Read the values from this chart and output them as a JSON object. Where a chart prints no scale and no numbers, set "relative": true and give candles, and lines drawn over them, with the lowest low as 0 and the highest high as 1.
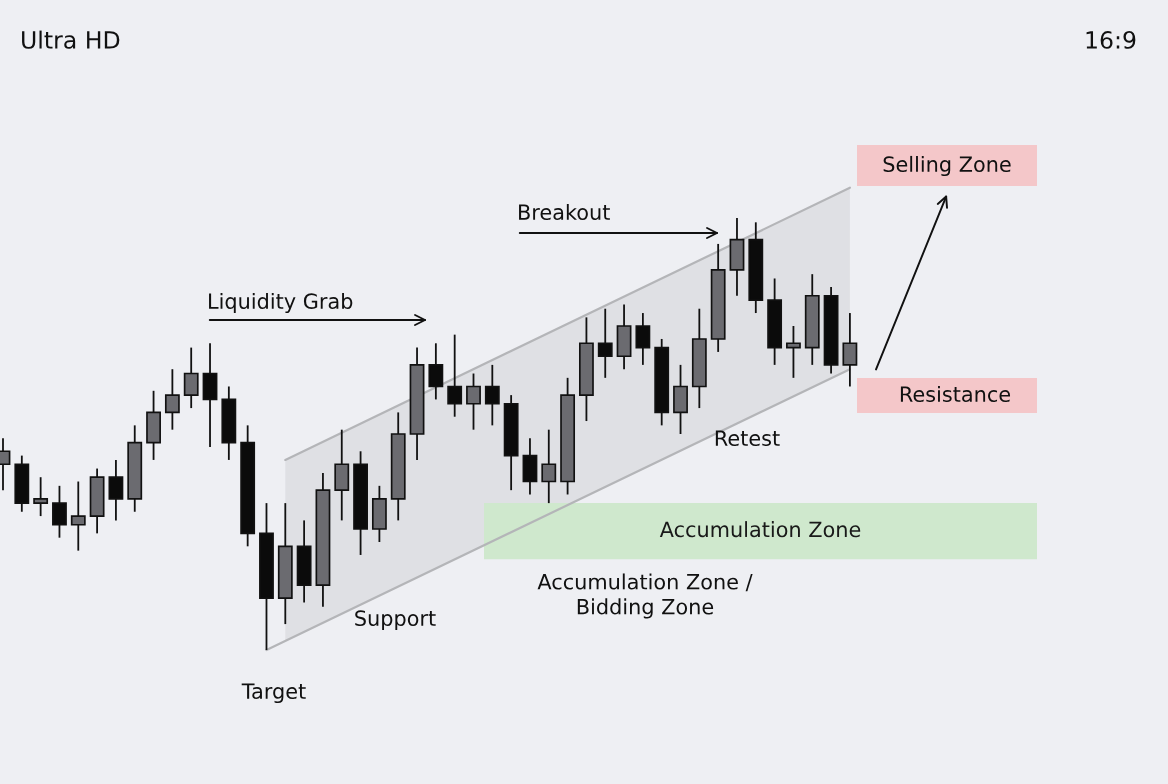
{
  "chart_data": {
    "type": "candlestick",
    "relative": true,
    "categories": [
      null,
      null,
      null,
      null,
      null,
      null,
      null,
      null,
      null,
      null,
      null,
      null,
      null,
      null,
      null,
      null,
      null,
      null,
      null,
      null,
      null,
      null,
      null,
      null,
      null,
      null,
      null,
      null,
      null,
      null,
      null,
      null,
      null,
      null,
      null,
      null,
      null,
      null,
      null,
      null,
      null,
      null,
      null,
      null,
      null,
      null
    ],
    "ohlc": [
      [
        0.43,
        0.49,
        0.37,
        0.46
      ],
      [
        0.43,
        0.45,
        0.32,
        0.34
      ],
      [
        0.34,
        0.4,
        0.31,
        0.35
      ],
      [
        0.34,
        0.38,
        0.26,
        0.29
      ],
      [
        0.29,
        0.39,
        0.23,
        0.31
      ],
      [
        0.31,
        0.42,
        0.27,
        0.4
      ],
      [
        0.4,
        0.44,
        0.3,
        0.35
      ],
      [
        0.35,
        0.52,
        0.32,
        0.48
      ],
      [
        0.48,
        0.6,
        0.44,
        0.55
      ],
      [
        0.55,
        0.65,
        0.51,
        0.59
      ],
      [
        0.59,
        0.7,
        0.56,
        0.64
      ],
      [
        0.64,
        0.71,
        0.47,
        0.58
      ],
      [
        0.58,
        0.61,
        0.44,
        0.48
      ],
      [
        0.48,
        0.52,
        0.24,
        0.27
      ],
      [
        0.27,
        0.34,
        0,
        0.12
      ],
      [
        0.12,
        0.34,
        0.06,
        0.24
      ],
      [
        0.24,
        0.3,
        0.11,
        0.15
      ],
      [
        0.15,
        0.41,
        0.1,
        0.37
      ],
      [
        0.37,
        0.51,
        0.3,
        0.43
      ],
      [
        0.43,
        0.46,
        0.22,
        0.28
      ],
      [
        0.28,
        0.38,
        0.25,
        0.35
      ],
      [
        0.35,
        0.55,
        0.3,
        0.5
      ],
      [
        0.5,
        0.7,
        0.44,
        0.66
      ],
      [
        0.66,
        0.71,
        0.58,
        0.61
      ],
      [
        0.61,
        0.73,
        0.54,
        0.57
      ],
      [
        0.57,
        0.64,
        0.51,
        0.61
      ],
      [
        0.61,
        0.66,
        0.52,
        0.57
      ],
      [
        0.57,
        0.59,
        0.37,
        0.45
      ],
      [
        0.45,
        0.49,
        0.36,
        0.39
      ],
      [
        0.39,
        0.51,
        0.34,
        0.43
      ],
      [
        0.39,
        0.63,
        0.36,
        0.59
      ],
      [
        0.59,
        0.77,
        0.53,
        0.71
      ],
      [
        0.71,
        0.79,
        0.63,
        0.68
      ],
      [
        0.68,
        0.8,
        0.65,
        0.75
      ],
      [
        0.75,
        0.78,
        0.66,
        0.7
      ],
      [
        0.7,
        0.72,
        0.52,
        0.55
      ],
      [
        0.55,
        0.66,
        0.5,
        0.61
      ],
      [
        0.61,
        0.79,
        0.56,
        0.72
      ],
      [
        0.72,
        0.94,
        0.69,
        0.88
      ],
      [
        0.88,
        1,
        0.82,
        0.95
      ],
      [
        0.95,
        0.99,
        0.78,
        0.81
      ],
      [
        0.81,
        0.86,
        0.66,
        0.7
      ],
      [
        0.7,
        0.75,
        0.63,
        0.71
      ],
      [
        0.7,
        0.87,
        0.66,
        0.82
      ],
      [
        0.82,
        0.84,
        0.64,
        0.66
      ],
      [
        0.66,
        0.78,
        0.61,
        0.71
      ]
    ],
    "colors": [
      "#6b6b70",
      "#0b0b0b",
      "#6b6b70",
      "#0b0b0b",
      "#6b6b70",
      "#6b6b70",
      "#0b0b0b",
      "#6b6b70",
      "#6b6b70",
      "#6b6b70",
      "#6b6b70",
      "#0b0b0b",
      "#0b0b0b",
      "#0b0b0b",
      "#0b0b0b",
      "#6b6b70",
      "#0b0b0b",
      "#6b6b70",
      "#6b6b70",
      "#0b0b0b",
      "#6b6b70",
      "#6b6b70",
      "#6b6b70",
      "#0b0b0b",
      "#0b0b0b",
      "#6b6b70",
      "#0b0b0b",
      "#0b0b0b",
      "#0b0b0b",
      "#6b6b70",
      "#6b6b70",
      "#6b6b70",
      "#0b0b0b",
      "#6b6b70",
      "#0b0b0b",
      "#0b0b0b",
      "#6b6b70",
      "#6b6b70",
      "#6b6b70",
      "#6b6b70",
      "#0b0b0b",
      "#0b0b0b",
      "#6b6b70",
      "#6b6b70",
      "#0b0b0b",
      "#6b6b70"
    ],
    "series": [
      {
        "type": "line",
        "color": "#b4b5b8",
        "values": [
          null,
          null,
          null,
          null,
          null,
          null,
          null,
          null,
          null,
          null,
          null,
          null,
          null,
          null,
          null,
          0.44,
          null,
          null,
          null,
          null,
          null,
          null,
          null,
          null,
          null,
          null,
          null,
          null,
          null,
          null,
          null,
          null,
          null,
          null,
          null,
          null,
          null,
          null,
          null,
          null,
          null,
          null,
          null,
          null,
          null,
          1.07
        ],
        "lower": [
          null,
          null,
          null,
          null,
          null,
          null,
          null,
          null,
          null,
          null,
          null,
          null,
          null,
          null,
          null,
          0.02,
          null,
          null,
          null,
          null,
          null,
          null,
          null,
          null,
          null,
          null,
          null,
          null,
          null,
          null,
          null,
          null,
          null,
          null,
          null,
          null,
          null,
          null,
          null,
          null,
          null,
          null,
          null,
          null,
          null,
          0.65
        ],
        "upper": [
          null,
          null,
          null,
          null,
          null,
          null,
          null,
          null,
          null,
          null,
          null,
          null,
          null,
          null,
          null,
          0.44,
          null,
          null,
          null,
          null,
          null,
          null,
          null,
          null,
          null,
          null,
          null,
          null,
          null,
          null,
          null,
          null,
          null,
          null,
          null,
          null,
          null,
          null,
          null,
          null,
          null,
          null,
          null,
          null,
          null,
          1.07
        ]
      },
      {
        "type": "line",
        "color": "#b4b5b8",
        "values": [
          null,
          null,
          null,
          null,
          null,
          null,
          null,
          null,
          null,
          null,
          null,
          null,
          null,
          null,
          0,
          null,
          null,
          null,
          null,
          null,
          null,
          null,
          null,
          null,
          null,
          null,
          null,
          null,
          null,
          null,
          null,
          null,
          null,
          null,
          null,
          null,
          null,
          null,
          null,
          null,
          null,
          null,
          null,
          null,
          null,
          0.65
        ]
      }
    ],
    "bands": [
      {
        "axis": "y",
        "from": 0.21,
        "to": 0.34,
        "label": "Accumulation Zone",
        "color": "#cfe8cd"
      }
    ],
    "annotations": [
      "Ultra HD",
      "16:9",
      "Liquidity Grab",
      "Breakout",
      "Retest",
      "Support",
      "Target",
      "Accumulation Zone /\nBidding Zone",
      "Selling Zone",
      "Resistance"
    ]
  }
}
